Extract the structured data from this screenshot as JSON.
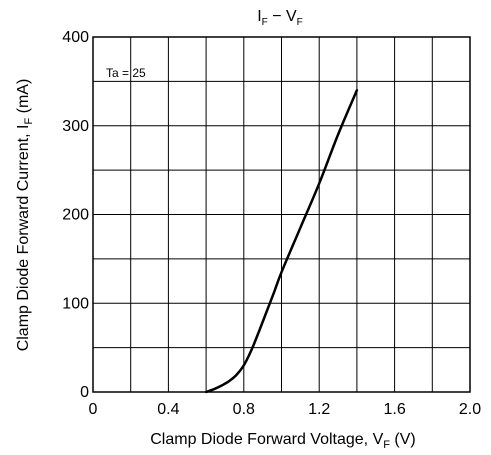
{
  "chart_data": {
    "type": "line",
    "title": {
      "main": "I",
      "sub1": "F",
      "sep": " − V",
      "sub2": "F"
    },
    "xlabel": {
      "main": "Clamp Diode Forward Voltage, V",
      "sub": "F",
      "unit": " (V)"
    },
    "ylabel": {
      "main": "Clamp Diode Forward Current, I",
      "sub": "F",
      "unit": " (mA)"
    },
    "annotation": "Ta = 25",
    "xlim": [
      0,
      2.0
    ],
    "ylim": [
      0,
      400
    ],
    "grid": true,
    "x_grid_step": 0.2,
    "y_grid_step": 50,
    "x_ticks": [
      0,
      0.4,
      0.8,
      1.2,
      1.6,
      2.0
    ],
    "x_tick_labels": [
      "0",
      "0.4",
      "0.8",
      "1.2",
      "1.6",
      "2.0"
    ],
    "y_ticks": [
      0,
      100,
      200,
      300,
      400
    ],
    "y_tick_labels": [
      "0",
      "100",
      "200",
      "300",
      "400"
    ],
    "series": [
      {
        "x": [
          0.6,
          0.64,
          0.68,
          0.72,
          0.76,
          0.8,
          0.84,
          0.88,
          0.92,
          0.96,
          1.0,
          1.1,
          1.2,
          1.3,
          1.4
        ],
        "y": [
          0,
          3,
          7,
          12,
          19,
          30,
          47,
          68,
          90,
          112,
          135,
          185,
          235,
          290,
          340
        ]
      }
    ]
  }
}
